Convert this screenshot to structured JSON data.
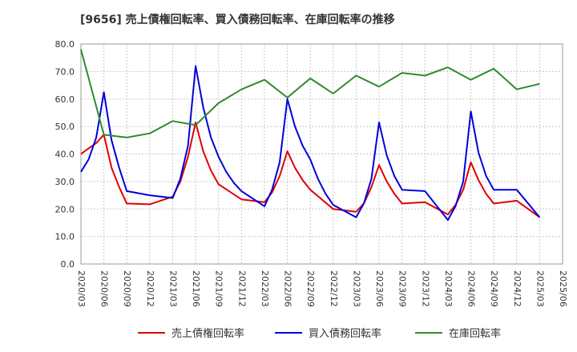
{
  "chart_data": {
    "type": "line",
    "title": "[9656]  売上債権回転率、買入債務回転率、在庫回転率の推移",
    "xlabel": "",
    "ylabel": "",
    "ylim": [
      0,
      80
    ],
    "yticks": [
      "0.0",
      "10.0",
      "20.0",
      "30.0",
      "40.0",
      "50.0",
      "60.0",
      "70.0",
      "80.0"
    ],
    "x_tick_labels": [
      "2020/03",
      "2020/06",
      "2020/09",
      "2020/12",
      "2021/03",
      "2021/06",
      "2021/09",
      "2021/12",
      "2022/03",
      "2022/06",
      "2022/09",
      "2022/12",
      "2023/03",
      "2023/06",
      "2023/09",
      "2023/12",
      "2024/03",
      "2024/06",
      "2024/09",
      "2024/12",
      "2025/03",
      "2025/06"
    ],
    "x_range": [
      "2020/03",
      "2025/06"
    ],
    "grid": true,
    "legend_position": "bottom",
    "colors": {
      "red": "#e00000",
      "blue": "#0000dd",
      "green": "#2e8b2e"
    },
    "series": [
      {
        "name": "売上債権回転率",
        "color": "#e00000",
        "points": [
          [
            "2020/03",
            40
          ],
          [
            "2020/04",
            42
          ],
          [
            "2020/05",
            44
          ],
          [
            "2020/06",
            47
          ],
          [
            "2020/07",
            35
          ],
          [
            "2020/08",
            28
          ],
          [
            "2020/09",
            22
          ],
          [
            "2020/12",
            21.7
          ],
          [
            "2021/03",
            24.5
          ],
          [
            "2021/04",
            30
          ],
          [
            "2021/05",
            39
          ],
          [
            "2021/06",
            51.5
          ],
          [
            "2021/07",
            41
          ],
          [
            "2021/08",
            34
          ],
          [
            "2021/09",
            29
          ],
          [
            "2021/12",
            23.5
          ],
          [
            "2022/03",
            22.5
          ],
          [
            "2022/04",
            26
          ],
          [
            "2022/05",
            32
          ],
          [
            "2022/06",
            41
          ],
          [
            "2022/07",
            35
          ],
          [
            "2022/08",
            30.5
          ],
          [
            "2022/09",
            27
          ],
          [
            "2022/12",
            20
          ],
          [
            "2023/03",
            19
          ],
          [
            "2023/04",
            22
          ],
          [
            "2023/05",
            28
          ],
          [
            "2023/06",
            36
          ],
          [
            "2023/07",
            30
          ],
          [
            "2023/08",
            25.5
          ],
          [
            "2023/09",
            22
          ],
          [
            "2023/12",
            22.5
          ],
          [
            "2024/03",
            18
          ],
          [
            "2024/04",
            21.5
          ],
          [
            "2024/05",
            27
          ],
          [
            "2024/06",
            37
          ],
          [
            "2024/07",
            30.5
          ],
          [
            "2024/08",
            25.5
          ],
          [
            "2024/09",
            22
          ],
          [
            "2024/12",
            23
          ],
          [
            "2025/03",
            17
          ]
        ]
      },
      {
        "name": "買入債務回転率",
        "color": "#0000dd",
        "points": [
          [
            "2020/03",
            33.5
          ],
          [
            "2020/04",
            38
          ],
          [
            "2020/05",
            46
          ],
          [
            "2020/06",
            62.5
          ],
          [
            "2020/07",
            45
          ],
          [
            "2020/08",
            35
          ],
          [
            "2020/09",
            26.5
          ],
          [
            "2020/12",
            25
          ],
          [
            "2021/03",
            24
          ],
          [
            "2021/04",
            31
          ],
          [
            "2021/05",
            43
          ],
          [
            "2021/06",
            72
          ],
          [
            "2021/07",
            57
          ],
          [
            "2021/08",
            46
          ],
          [
            "2021/09",
            39
          ],
          [
            "2021/10",
            33.5
          ],
          [
            "2021/11",
            29.5
          ],
          [
            "2021/12",
            26.5
          ],
          [
            "2022/03",
            21
          ],
          [
            "2022/04",
            27
          ],
          [
            "2022/05",
            37
          ],
          [
            "2022/06",
            60
          ],
          [
            "2022/07",
            50
          ],
          [
            "2022/08",
            43
          ],
          [
            "2022/09",
            38
          ],
          [
            "2022/10",
            31
          ],
          [
            "2022/11",
            25.5
          ],
          [
            "2022/12",
            21.5
          ],
          [
            "2023/03",
            17
          ],
          [
            "2023/04",
            22
          ],
          [
            "2023/05",
            31
          ],
          [
            "2023/06",
            51.5
          ],
          [
            "2023/07",
            39.5
          ],
          [
            "2023/08",
            32
          ],
          [
            "2023/09",
            27
          ],
          [
            "2023/12",
            26.5
          ],
          [
            "2024/03",
            16
          ],
          [
            "2024/04",
            21
          ],
          [
            "2024/05",
            30
          ],
          [
            "2024/06",
            55.5
          ],
          [
            "2024/07",
            40.5
          ],
          [
            "2024/08",
            32
          ],
          [
            "2024/09",
            27
          ],
          [
            "2024/12",
            27
          ],
          [
            "2025/03",
            17
          ]
        ]
      },
      {
        "name": "在庫回転率",
        "color": "#2e8b2e",
        "points": [
          [
            "2020/03",
            78
          ],
          [
            "2020/06",
            47
          ],
          [
            "2020/09",
            46
          ],
          [
            "2020/12",
            47.5
          ],
          [
            "2021/03",
            52
          ],
          [
            "2021/06",
            50.5
          ],
          [
            "2021/09",
            58.5
          ],
          [
            "2021/12",
            63.5
          ],
          [
            "2022/03",
            67
          ],
          [
            "2022/06",
            60.5
          ],
          [
            "2022/09",
            67.5
          ],
          [
            "2022/12",
            62
          ],
          [
            "2023/03",
            68.5
          ],
          [
            "2023/06",
            64.5
          ],
          [
            "2023/09",
            69.5
          ],
          [
            "2023/12",
            68.5
          ],
          [
            "2024/03",
            71.5
          ],
          [
            "2024/06",
            67
          ],
          [
            "2024/09",
            71
          ],
          [
            "2024/12",
            63.5
          ],
          [
            "2025/03",
            65.5
          ]
        ]
      }
    ]
  }
}
